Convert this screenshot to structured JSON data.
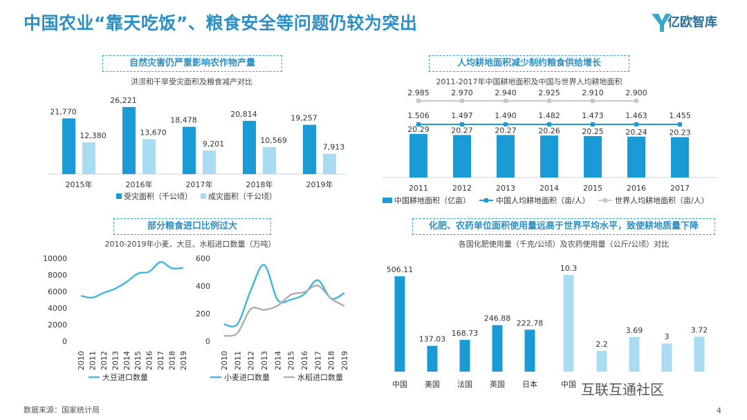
{
  "header": {
    "title": "中国农业“靠天吃饭”、粮食安全等问题仍较为突出",
    "logo_text": "亿欧智库"
  },
  "footer": {
    "source": "数据来源：国家统计局",
    "page_number": "4",
    "watermark": "互联互通社区"
  },
  "colors": {
    "dark": "#1a9bd5",
    "light": "#a9dcf2",
    "gray": "#c8c8c8",
    "title": "#2a8fc4"
  },
  "panels": {
    "disaster": {
      "title": "自然灾害仍严重影响农作物产量",
      "subtitle": "洪涝和干旱受灾面积及粮食减产对比"
    },
    "land": {
      "title": "人均耕地面积减少制约粮食供给增长",
      "subtitle": "2011-2017年中国耕地面积及中国与世界人均耕地面积"
    },
    "imports": {
      "title": "部分粮食进口比例过大",
      "subtitle": "2010-2019年小麦、大豆、水稻进口数量（万吨）"
    },
    "fertilizer": {
      "title": "化肥、农药单位面积使用量远高于世界平均水平，致使耕地质量下降",
      "subtitle": "各国化肥使用量（千克/公顷）及农药使用量（公斤/公顷）对比"
    }
  },
  "chart_data": [
    {
      "id": "disaster",
      "type": "bar",
      "categories": [
        "2015年",
        "2016年",
        "2017年",
        "2018年",
        "2019年"
      ],
      "series": [
        {
          "name": "受灾面积（千公顷）",
          "values": [
            21770,
            26221,
            18478,
            20814,
            19257
          ],
          "labels": [
            "21,770",
            "26,221",
            "18,478",
            "20,814",
            "19,257"
          ],
          "color": "#1a9bd5"
        },
        {
          "name": "成灾面积（千公顷）",
          "values": [
            12380,
            13670,
            9201,
            10569,
            7913
          ],
          "labels": [
            "12,380",
            "13,670",
            "9,201",
            "10,569",
            "7,913"
          ],
          "color": "#a9dcf2"
        }
      ],
      "legend": "bottom"
    },
    {
      "id": "land",
      "type": "bar",
      "categories": [
        "2011",
        "2012",
        "2013",
        "2014",
        "2015",
        "2016",
        "2017"
      ],
      "series": [
        {
          "name": "中国耕地面积（亿亩）",
          "type": "bar",
          "values": [
            20.29,
            20.27,
            20.27,
            20.26,
            20.25,
            20.24,
            20.23
          ],
          "labels": [
            "20.29",
            "20.27",
            "20.27",
            "20.26",
            "20.25",
            "20.24",
            "20.23"
          ],
          "color": "#1a9bd5"
        },
        {
          "name": "中国人均耕地面积（亩/人）",
          "type": "line",
          "values": [
            1.506,
            1.497,
            1.49,
            1.482,
            1.473,
            1.463,
            1.455
          ],
          "labels": [
            "1.506",
            "1.497",
            "1.490",
            "1.482",
            "1.473",
            "1.463",
            "1.455"
          ],
          "color": "#1a9bd5"
        },
        {
          "name": "世界人均耕地面积（亩/人）",
          "type": "line",
          "values": [
            2.985,
            2.97,
            2.94,
            2.925,
            2.91,
            2.9,
            null
          ],
          "labels": [
            "2.985",
            "2.970",
            "2.940",
            "2.925",
            "2.910",
            "2.900",
            ""
          ],
          "color": "#c8c8c8"
        }
      ],
      "legend": "bottom"
    },
    {
      "id": "soybean",
      "type": "line",
      "x": [
        "2010",
        "2011",
        "2012",
        "2013",
        "2014",
        "2015",
        "2016",
        "2017",
        "2018",
        "2019"
      ],
      "ylim": [
        0,
        10000
      ],
      "yticks": [
        "0",
        "2000",
        "4000",
        "6000",
        "8000",
        "10000"
      ],
      "series": [
        {
          "name": "大豆进口数量",
          "values": [
            5480,
            5264,
            5838,
            6338,
            7140,
            8169,
            8391,
            9553,
            8803,
            8851
          ],
          "color": "#45b6e3"
        }
      ],
      "legend": "bottom"
    },
    {
      "id": "wheat-rice",
      "type": "line",
      "x": [
        "2010",
        "2011",
        "2012",
        "2013",
        "2014",
        "2015",
        "2016",
        "2017",
        "2018",
        "2019"
      ],
      "ylim": [
        0,
        600
      ],
      "yticks": [
        "0",
        "200",
        "400",
        "600"
      ],
      "series": [
        {
          "name": "小麦进口数量",
          "values": [
            123,
            125,
            370,
            553,
            300,
            301,
            341,
            442,
            310,
            349
          ],
          "color": "#45b6e3"
        },
        {
          "name": "水稻进口数量",
          "values": [
            39,
            60,
            234,
            227,
            258,
            337,
            356,
            403,
            308,
            255
          ],
          "color": "#b0b0b0"
        }
      ],
      "legend": "bottom"
    },
    {
      "id": "fertilizer",
      "type": "bar",
      "groups": [
        {
          "categories": [
            "中国",
            "美国",
            "法国",
            "英国",
            "日本"
          ],
          "values": [
            506.11,
            137.03,
            168.73,
            246.88,
            222.78
          ],
          "labels": [
            "506.11",
            "137.03",
            "168.73",
            "246.88",
            "222.78"
          ],
          "color": "#1a9bd5"
        },
        {
          "categories": [
            "中国",
            "",
            "",
            "",
            ""
          ],
          "values": [
            10.3,
            2.2,
            3.69,
            3,
            3.72
          ],
          "labels": [
            "10.3",
            "2.2",
            "3.69",
            "3",
            "3.72"
          ],
          "color": "#a9dcf2"
        }
      ]
    }
  ]
}
